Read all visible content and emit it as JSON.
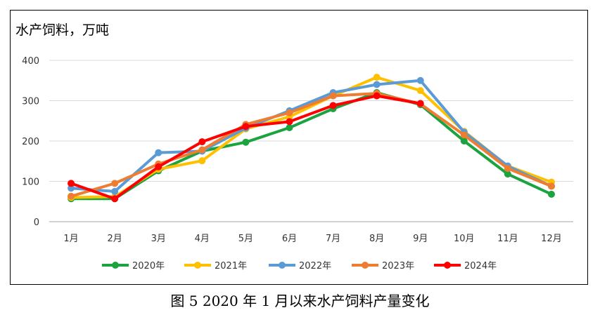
{
  "chart_data": {
    "type": "line",
    "title": "水产饲料，万吨",
    "caption": "图 5  2020 年 1 月以来水产饲料产量变化",
    "categories": [
      "1月",
      "2月",
      "3月",
      "4月",
      "5月",
      "6月",
      "7月",
      "8月",
      "9月",
      "10月",
      "11月",
      "12月"
    ],
    "ylim": [
      0,
      400
    ],
    "yticks": [
      0,
      100,
      200,
      300,
      400
    ],
    "grid": true,
    "legend": "bottom",
    "series": [
      {
        "name": "2020年",
        "color": "#1aa33f",
        "values": [
          57,
          57,
          126,
          175,
          197,
          233,
          280,
          320,
          290,
          200,
          118,
          68
        ]
      },
      {
        "name": "2021年",
        "color": "#ffc000",
        "values": [
          60,
          62,
          130,
          151,
          230,
          260,
          312,
          358,
          325,
          224,
          138,
          98
        ]
      },
      {
        "name": "2022年",
        "color": "#5b9bd5",
        "values": [
          83,
          75,
          171,
          175,
          232,
          275,
          320,
          340,
          350,
          222,
          138,
          88
        ]
      },
      {
        "name": "2023年",
        "color": "#ed7d31",
        "values": [
          63,
          95,
          143,
          178,
          241,
          270,
          312,
          318,
          292,
          215,
          132,
          88
        ]
      },
      {
        "name": "2024年",
        "color": "#ff0000",
        "values": [
          95,
          57,
          136,
          198,
          236,
          248,
          288,
          312,
          293,
          null,
          null,
          null
        ]
      }
    ]
  }
}
